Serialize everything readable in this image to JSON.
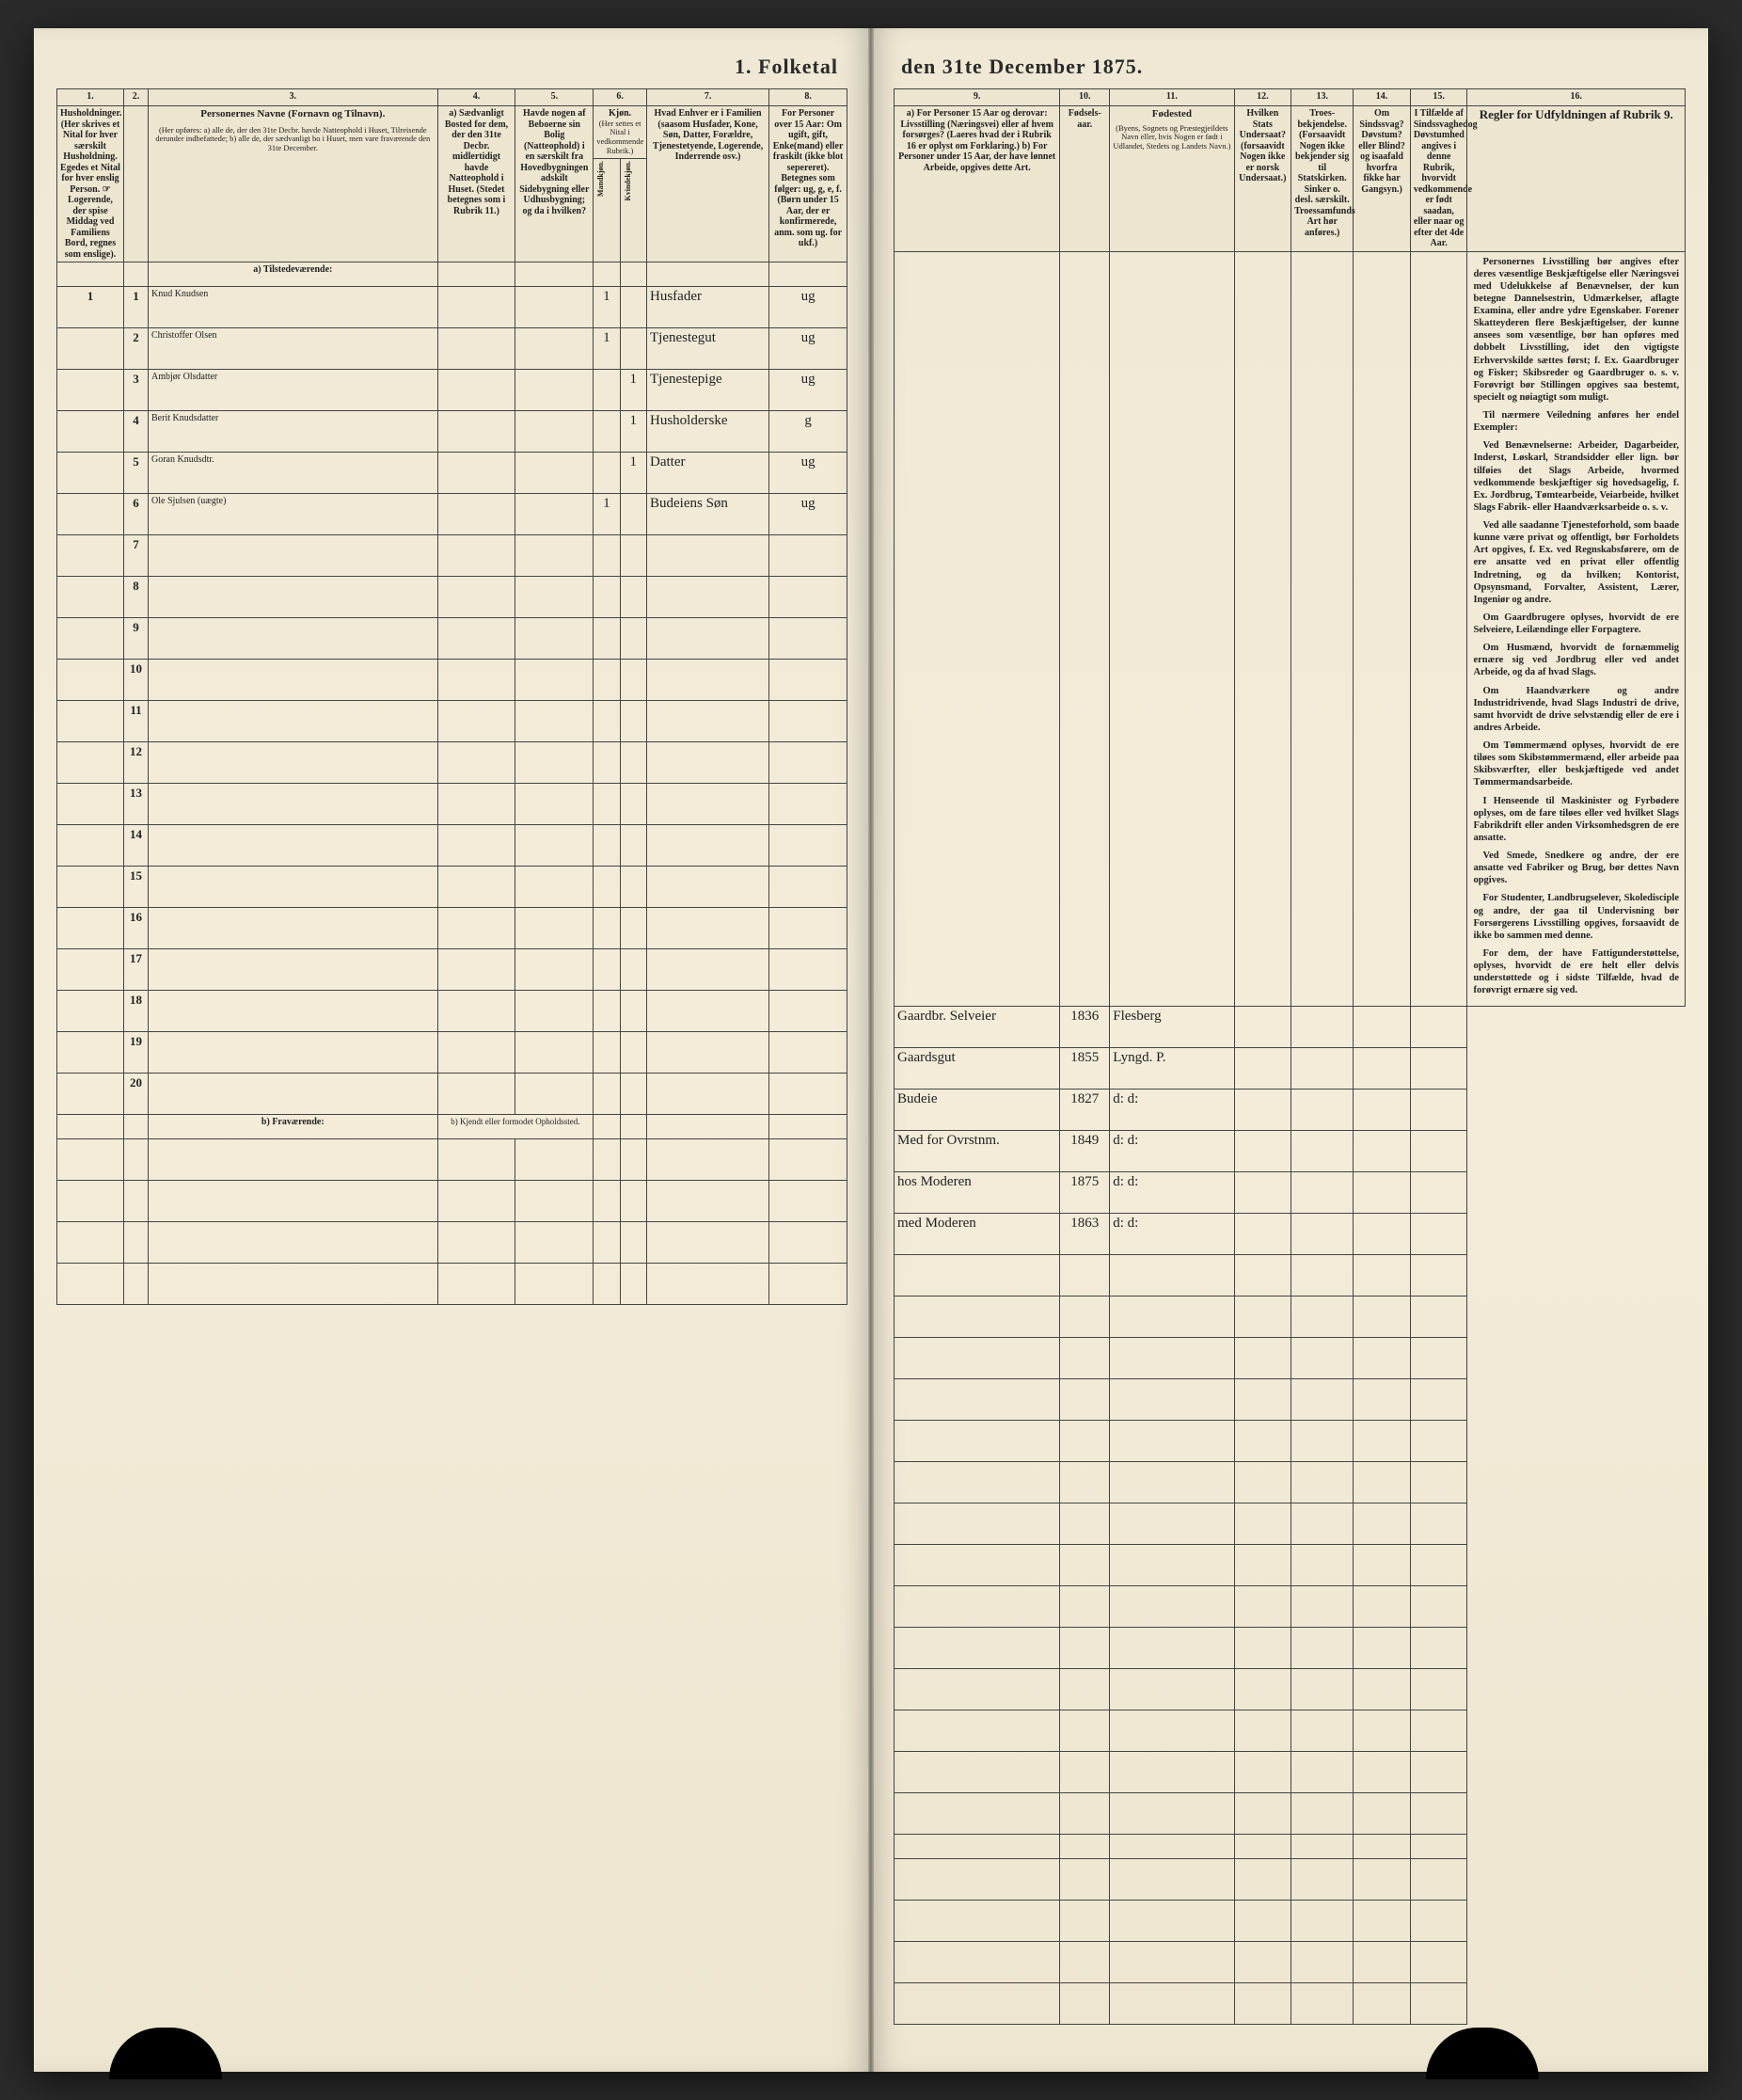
{
  "title_left": "1. Folketal",
  "title_right": "den 31te December 1875.",
  "columns_left": {
    "c1_num": "1.",
    "c1": "Husholdninger. (Her skrives et Nital for hver særskilt Husholdning. Egedes et Nital for hver enslig Person. ☞ Logerende, der spise Middag ved Familiens Bord, regnes som enslige).",
    "c2_num": "2.",
    "c3_num": "3.",
    "c3_title": "Personernes Navne (Fornavn og Tilnavn).",
    "c3_sub": "(Her opføres: a) alle de, der den 31te Decbr. havde Natteophold i Huset, Tilreisende derunder indbefattede; b) alle de, der sædvanligt bo i Huset, men vare fraværende den 31te December.",
    "c4_num": "4.",
    "c4": "a) Sædvanligt Bosted for dem, der den 31te Decbr. midlertidigt havde Natteophold i Huset. (Stedet betegnes som i Rubrik 11.)",
    "c5_num": "5.",
    "c5": "Havde nogen af Beboerne sin Bolig (Natteophold) i en særskilt fra Hovedbygningen adskilt Sidebygning eller Udhusbygning; og da i hvilken?",
    "c6_num": "6.",
    "c6_title": "Kjøn.",
    "c6_sub": "(Her settes et Nital i vedkommende Rubrik.)",
    "c6a": "Mandkjøn.",
    "c6b": "Kvindekjøn.",
    "c7_num": "7.",
    "c7": "Hvad Enhver er i Familien (saasom Husfader, Kone, Søn, Datter, Forældre, Tjenestetyende, Logerende, Inderrende osv.)",
    "c8_num": "8.",
    "c8": "For Personer over 15 Aar: Om ugift, gift, Enke(mand) eller fraskilt (ikke blot sepereret). Betegnes som følger: ug, g, e, f. (Børn under 15 Aar, der er konfirmerede, anm. som ug. for ukf.)"
  },
  "columns_right": {
    "c9_num": "9.",
    "c9": "a) For Personer 15 Aar og derovar: Livsstilling (Næringsvei) eller af hvem forsørges? (Laeres hvad der i Rubrik 16 er oplyst om Forklaring.) b) For Personer under 15 Aar, der have lønnet Arbeide, opgives dette Art.",
    "c10_num": "10.",
    "c10": "Fødsels-aar.",
    "c11_num": "11.",
    "c11_title": "Fødested",
    "c11_sub": "(Byens, Sognets og Præstegjeildets Navn eller, hvis Nogen er født i Udlandet, Stedets og Landets Navn.)",
    "c12_num": "12.",
    "c12": "Hvilken Stats Undersaat? (forsaavidt Nogen ikke er norsk Undersaat.)",
    "c13_num": "13.",
    "c13": "Troes-bekjendelse. (Forsaavidt Nogen ikke bekjender sig til Statskirken. Sinker o. desl. særskilt. Troessamfunds Art hør anføres.)",
    "c14_num": "14.",
    "c14": "Om Sindssvag? Døvstum? eller Blind? og isaafald hvorfra fikke har Gangsyn.)",
    "c15_num": "15.",
    "c15": "I Tilfælde af Sindssvaghedog Døvstumhed angives i denne Rubrik, hvorvidt vedkommende er født saadan, eller naar og efter det 4de Aar.",
    "c16_num": "16.",
    "c16": "Regler for Udfyldningen af Rubrik 9."
  },
  "section_a": "a) Tilstedeværende:",
  "section_b": "b) Fraværende:",
  "section_b_col4": "b) Kjendt eller formodet Opholdssted.",
  "rows": [
    {
      "n": "1",
      "name": "Knud Knudsen",
      "m": "1",
      "f": "",
      "rel": "Husfader",
      "civ": "ug",
      "occ": "Gaardbr. Selveier",
      "year": "1836",
      "place": "Flesberg"
    },
    {
      "n": "2",
      "name": "Christoffer Olsen",
      "m": "1",
      "f": "",
      "rel": "Tjenestegut",
      "civ": "ug",
      "occ": "Gaardsgut",
      "year": "1855",
      "place": "Lyngd. P."
    },
    {
      "n": "3",
      "name": "Ambjør Olsdatter",
      "m": "",
      "f": "1",
      "rel": "Tjenestepige",
      "civ": "ug",
      "occ": "Budeie",
      "year": "1827",
      "place": "d:   d:"
    },
    {
      "n": "4",
      "name": "Berit Knudsdatter",
      "m": "",
      "f": "1",
      "rel": "Husholderske",
      "civ": "g",
      "occ": "Med for Ovrstnm.",
      "year": "1849",
      "place": "d:   d:"
    },
    {
      "n": "5",
      "name": "Goran Knudsdtr.",
      "m": "",
      "f": "1",
      "rel": "Datter",
      "civ": "ug",
      "occ": "hos Moderen",
      "year": "1875",
      "place": "d:   d:"
    },
    {
      "n": "6",
      "name": "Ole Sjulsen (uægte)",
      "m": "1",
      "f": "",
      "rel": "Budeiens Søn",
      "civ": "ug",
      "occ": "med Moderen",
      "year": "1863",
      "place": "d:   d:"
    }
  ],
  "empty_rows_left": [
    "7",
    "8",
    "9",
    "10",
    "11",
    "12",
    "13",
    "14",
    "15",
    "16",
    "17",
    "18",
    "19",
    "20"
  ],
  "rules_title": "Regler for Udfyldningen af Rubrik 9.",
  "rules_paragraphs": [
    "Personernes Livsstilling bør angives efter deres væsentlige Beskjæftigelse eller Næringsvei med Udelukkelse af Benævnelser, der kun betegne Dannelsestrin, Udmærkelser, aflagte Examina, eller andre ydre Egenskaber. Forener Skatteyderen flere Beskjæftigelser, der kunne ansees som væsentlige, bør han opføres med dobbelt Livsstilling, idet den vigtigste Erhvervskilde sættes først; f. Ex. Gaardbruger og Fisker; Skibsreder og Gaardbruger o. s. v. Forøvrigt bør Stillingen opgives saa bestemt, specielt og nøiagtigt som muligt.",
    "Til nærmere Veiledning anføres her endel Exempler:",
    "Ved Benævnelserne: Arbeider, Dagarbeider, Inderst, Løskarl, Strandsidder eller lign. bør tilføies det Slags Arbeide, hvormed vedkommende beskjæftiger sig hovedsagelig, f. Ex. Jordbrug, Tømtearbeide, Veiarbeide, hvilket Slags Fabrik- eller Haandværksarbeide o. s. v.",
    "Ved alle saadanne Tjenesteforhold, som baade kunne være privat og offentligt, bør Forholdets Art opgives, f. Ex. ved Regnskabsførere, om de ere ansatte ved en privat eller offentlig Indretning, og da hvilken; Kontorist, Opsynsmand, Forvalter, Assistent, Lærer, Ingeniør og andre.",
    "Om Gaardbrugere oplyses, hvorvidt de ere Selveiere, Leilændinge eller Forpagtere.",
    "Om Husmænd, hvorvidt de fornæmmelig ernære sig ved Jordbrug eller ved andet Arbeide, og da af hvad Slags.",
    "Om Haandværkere og andre Industridrivende, hvad Slags Industri de drive, samt hvorvidt de drive selvstændig eller de ere i andres Arbeide.",
    "Om Tømmermænd oplyses, hvorvidt de ere tiløes som Skibstømmermænd, eller arbeide paa Skibsværfter, eller beskjæftigede ved andet Tømmermandsarbeide.",
    "I Henseende til Maskinister og Fyrbødere oplyses, om de fare tiløes eller ved hvilket Slags Fabrikdrift eller anden Virksomhedsgren de ere ansatte.",
    "Ved Smede, Snedkere og andre, der ere ansatte ved Fabriker og Brug, bør dettes Navn opgives.",
    "For Studenter, Landbrugselever, Skoledisciple og andre, der gaa til Undervisning bør Forsørgerens Livsstilling opgives, forsaavidt de ikke bo sammen med denne.",
    "For dem, der have Fattigunderstøttelse, oplyses, hvorvidt de ere helt eller delvis understøttede og i sidste Tilfælde, hvad de forøvrigt ernære sig ved."
  ]
}
